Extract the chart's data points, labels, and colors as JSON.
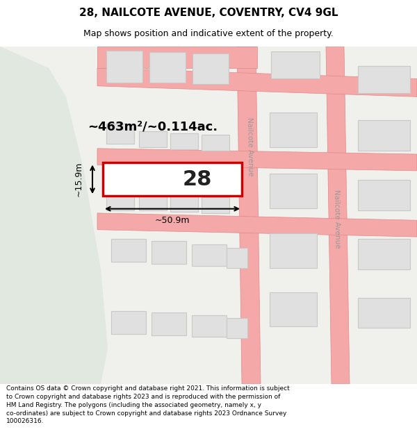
{
  "title": "28, NAILCOTE AVENUE, COVENTRY, CV4 9GL",
  "subtitle": "Map shows position and indicative extent of the property.",
  "footer": "Contains OS data © Crown copyright and database right 2021. This information is subject\nto Crown copyright and database rights 2023 and is reproduced with the permission of\nHM Land Registry. The polygons (including the associated geometry, namely x, y\nco-ordinates) are subject to Crown copyright and database rights 2023 Ordnance Survey\n100026316.",
  "bg_color": "#f0f0ec",
  "left_green": "#e0e8e0",
  "road_fill": "#f5a8a8",
  "road_edge": "#e08888",
  "bld_fill": "#e0e0e0",
  "bld_edge": "#c8c8c8",
  "plot_fill": "#ffffff",
  "plot_edge": "#cc0000",
  "street_color": "#999999",
  "area_label": "~463m²/~0.114ac.",
  "width_label": "~50.9m",
  "height_label": "~15.9m",
  "number_label": "28",
  "title_size": 11,
  "subtitle_size": 9,
  "footer_size": 6.5,
  "area_label_size": 13,
  "dim_label_size": 9,
  "num_size": 22
}
